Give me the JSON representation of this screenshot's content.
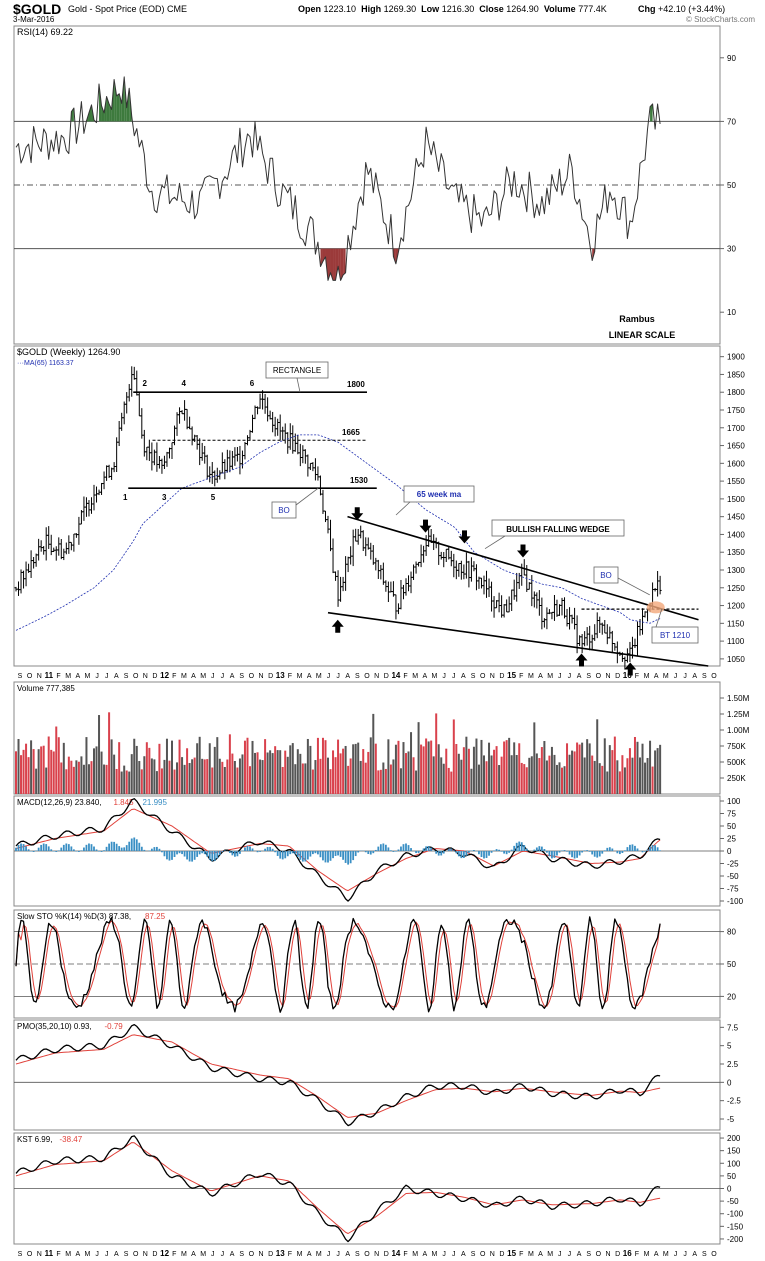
{
  "header": {
    "symbol": "$GOLD",
    "description": "Gold - Spot Price (EOD)",
    "exchange": "CME",
    "date": "3-Mar-2016",
    "open_label": "Open",
    "open": "1223.10",
    "high_label": "High",
    "high": "1269.30",
    "low_label": "Low",
    "low": "1216.30",
    "close_label": "Close",
    "close": "1264.90",
    "volume_label": "Volume",
    "volume": "777.4K",
    "change_label": "Chg",
    "change": "+42.10 (+3.44%)",
    "copyright": "© StockCharts.com"
  },
  "notes": {
    "author": "Rambus",
    "scale": "LINEAR SCALE"
  },
  "colors": {
    "up_bar": "#d9414c",
    "down_bar": "#555555",
    "ma_line": "#1f2fb0",
    "signal_line": "#e0413a",
    "histogram": "#3a8fc4",
    "rsi_fill_high": "#3d7a3d",
    "rsi_fill_low": "#9b3a3a",
    "highlight": "#f2a77a"
  },
  "chart_data": [
    {
      "panel": "rsi",
      "type": "line",
      "label": "RSI(14) 69.22",
      "y_ticks": [
        90,
        70,
        50,
        30,
        10
      ],
      "ylim": [
        0,
        100
      ],
      "guide_lines": [
        70,
        50,
        30
      ],
      "x": [
        "2010-09",
        "2011-02",
        "2011-08",
        "2011-11",
        "2012-04",
        "2012-09",
        "2012-12",
        "2013-04",
        "2013-06",
        "2013-09",
        "2013-12",
        "2014-03",
        "2014-06",
        "2014-09",
        "2014-12",
        "2015-03",
        "2015-06",
        "2015-08",
        "2015-10",
        "2015-12",
        "2016-02"
      ],
      "values": [
        62,
        65,
        82,
        48,
        44,
        66,
        49,
        32,
        20,
        55,
        31,
        63,
        45,
        38,
        52,
        44,
        55,
        32,
        50,
        38,
        69.22
      ]
    },
    {
      "panel": "price",
      "type": "ohlc",
      "title": "$GOLD (Weekly) 1264.90",
      "ma_label": "MA(65) 1163.37",
      "y_ticks": [
        1900,
        1850,
        1800,
        1750,
        1700,
        1650,
        1600,
        1550,
        1500,
        1450,
        1400,
        1350,
        1300,
        1250,
        1200,
        1150,
        1100,
        1050
      ],
      "ylim": [
        1030,
        1930
      ],
      "x": [
        "2010-09",
        "2010-12",
        "2011-02",
        "2011-05",
        "2011-07",
        "2011-09",
        "2011-10",
        "2011-12",
        "2012-02",
        "2012-05",
        "2012-08",
        "2012-10",
        "2012-12",
        "2013-02",
        "2013-04",
        "2013-06",
        "2013-08",
        "2013-12",
        "2014-03",
        "2014-06",
        "2014-08",
        "2014-11",
        "2015-01",
        "2015-03",
        "2015-05",
        "2015-07",
        "2015-09",
        "2015-11",
        "2015-12",
        "2016-02",
        "2016-03"
      ],
      "close": [
        1250,
        1380,
        1350,
        1520,
        1600,
        1880,
        1660,
        1580,
        1760,
        1560,
        1620,
        1790,
        1690,
        1640,
        1560,
        1230,
        1410,
        1200,
        1380,
        1320,
        1290,
        1180,
        1290,
        1170,
        1200,
        1090,
        1150,
        1070,
        1060,
        1220,
        1264.9
      ],
      "ma65": [
        1130,
        1170,
        1200,
        1250,
        1300,
        1380,
        1430,
        1480,
        1530,
        1560,
        1590,
        1630,
        1660,
        1680,
        1680,
        1660,
        1620,
        1540,
        1470,
        1420,
        1350,
        1300,
        1280,
        1260,
        1250,
        1220,
        1200,
        1180,
        1160,
        1150,
        1163.37
      ]
    },
    {
      "panel": "volume",
      "type": "bar",
      "label": "Volume 777,385",
      "y_ticks": [
        "1.50M",
        "1.25M",
        "1.00M",
        "750K",
        "500K",
        "250K"
      ],
      "ylim": [
        0,
        1750000
      ],
      "series_note": "weekly volume bars"
    },
    {
      "panel": "macd",
      "type": "line",
      "label": "MACD(12,26,9) 23.840, 1.845, 21.995",
      "label_parts": [
        "MACD(12,26,9) 23.840,",
        "1.845",
        ", 21.995"
      ],
      "y_ticks": [
        100,
        75,
        50,
        25,
        0,
        -25,
        -50,
        -75,
        -100
      ],
      "ylim": [
        -110,
        110
      ],
      "x": [
        "2010-09",
        "2011-01",
        "2011-06",
        "2011-09",
        "2012-01",
        "2012-05",
        "2012-10",
        "2013-01",
        "2013-04",
        "2013-07",
        "2013-10",
        "2014-01",
        "2014-04",
        "2014-07",
        "2014-10",
        "2015-01",
        "2015-04",
        "2015-08",
        "2015-11",
        "2016-01",
        "2016-03"
      ],
      "macd": [
        10,
        30,
        45,
        100,
        40,
        -15,
        20,
        0,
        -50,
        -95,
        -40,
        -10,
        5,
        -5,
        -35,
        10,
        -15,
        -30,
        -20,
        -10,
        23.84
      ],
      "signal": [
        5,
        25,
        40,
        85,
        50,
        -5,
        15,
        10,
        -40,
        -80,
        -45,
        -15,
        5,
        0,
        -30,
        0,
        -10,
        -25,
        -22,
        -15,
        21.995
      ]
    },
    {
      "panel": "stochastic",
      "type": "line",
      "label": "Slow STO %K(14) %D(3) 87.38, 87.25",
      "label_parts": [
        "Slow STO %K(14) %D(3) 87.38,",
        "87.25"
      ],
      "y_ticks": [
        80,
        50,
        20
      ],
      "ylim": [
        0,
        100
      ],
      "guide_lines": [
        80,
        50,
        20
      ]
    },
    {
      "panel": "pmo",
      "type": "line",
      "label": "PMO(35,20,10) 0.93, -0.79",
      "label_parts": [
        "PMO(35,20,10) 0.93,",
        "-0.79"
      ],
      "y_ticks": [
        7.5,
        5.0,
        2.5,
        0.0,
        -2.5,
        -5.0
      ],
      "ylim": [
        -6.5,
        8.5
      ],
      "x": [
        "2010-09",
        "2011-01",
        "2011-06",
        "2011-09",
        "2012-01",
        "2012-05",
        "2012-10",
        "2013-01",
        "2013-04",
        "2013-07",
        "2013-10",
        "2014-01",
        "2014-04",
        "2014-07",
        "2014-10",
        "2015-01",
        "2015-04",
        "2015-08",
        "2015-11",
        "2016-01",
        "2016-03"
      ],
      "pmo": [
        3,
        4.5,
        5,
        7.5,
        5,
        2,
        0.5,
        0,
        -2.5,
        -5.5,
        -4,
        -2,
        -0.5,
        -0.5,
        -1.5,
        -0.5,
        -1.5,
        -2,
        -1,
        -1.5,
        0.93
      ],
      "signal": [
        2.5,
        4,
        4.5,
        6.5,
        5.5,
        2.5,
        1,
        0.5,
        -2,
        -4.8,
        -4.2,
        -2.5,
        -1,
        -0.8,
        -1.3,
        -0.8,
        -1.3,
        -1.8,
        -1.2,
        -1.4,
        -0.79
      ]
    },
    {
      "panel": "kst",
      "type": "line",
      "label": "KST 6.99, -38.47",
      "label_parts": [
        "KST 6.99,",
        "-38.47"
      ],
      "y_ticks": [
        200,
        150,
        100,
        50,
        0,
        -50,
        -100,
        -150,
        -200
      ],
      "ylim": [
        -220,
        220
      ],
      "x": [
        "2010-09",
        "2011-01",
        "2011-06",
        "2011-09",
        "2012-01",
        "2012-05",
        "2012-10",
        "2013-01",
        "2013-04",
        "2013-07",
        "2013-10",
        "2014-01",
        "2014-04",
        "2014-07",
        "2014-10",
        "2015-01",
        "2015-04",
        "2015-08",
        "2015-11",
        "2016-01",
        "2016-03"
      ],
      "kst": [
        60,
        110,
        120,
        200,
        50,
        -20,
        60,
        20,
        -100,
        -200,
        -90,
        0,
        -20,
        -40,
        -70,
        -40,
        -70,
        -60,
        -40,
        -60,
        6.99
      ],
      "signal": [
        50,
        95,
        110,
        185,
        70,
        -10,
        50,
        30,
        -80,
        -180,
        -110,
        -20,
        -15,
        -35,
        -65,
        -45,
        -65,
        -60,
        -45,
        -55,
        -38.47
      ]
    }
  ],
  "x_axis_labels": [
    "S",
    "O",
    "N",
    "11",
    "F",
    "M",
    "A",
    "M",
    "J",
    "J",
    "A",
    "S",
    "O",
    "N",
    "D",
    "12",
    "F",
    "M",
    "A",
    "M",
    "J",
    "J",
    "A",
    "S",
    "O",
    "N",
    "D",
    "13",
    "F",
    "M",
    "A",
    "M",
    "J",
    "J",
    "A",
    "S",
    "O",
    "N",
    "D",
    "14",
    "F",
    "M",
    "A",
    "M",
    "J",
    "J",
    "A",
    "S",
    "O",
    "N",
    "D",
    "15",
    "F",
    "M",
    "A",
    "M",
    "J",
    "J",
    "A",
    "S",
    "O",
    "N",
    "D",
    "16",
    "F",
    "M",
    "A",
    "M",
    "J",
    "J",
    "A",
    "S",
    "O"
  ],
  "annotations": {
    "rectangle": "RECTANGLE",
    "level_1800": "1800",
    "level_1665": "1665",
    "level_1530": "1530",
    "points": [
      "1",
      "2",
      "3",
      "4",
      "5",
      "6"
    ],
    "bo": "BO",
    "ma_note": "65 week ma",
    "wedge": "BULLISH FALLING WEDGE",
    "bo2": "BO",
    "bt": "BT 1210"
  }
}
